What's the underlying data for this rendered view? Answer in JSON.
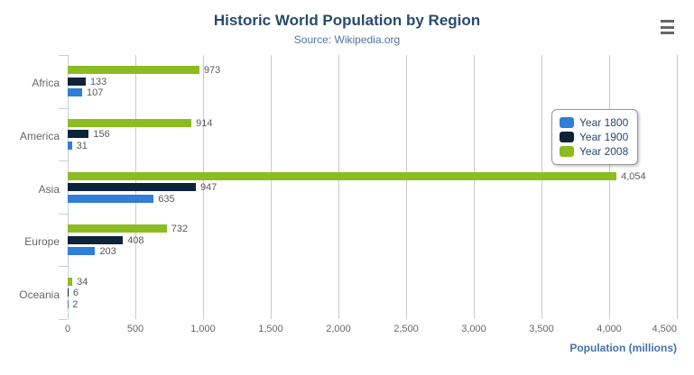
{
  "header": {
    "title": "Historic World Population by Region",
    "subtitle": "Source: Wikipedia.org"
  },
  "menu": {
    "name": "export-context-menu"
  },
  "axis_x": {
    "title": "Population (millions)",
    "min": 0,
    "max": 4500,
    "tick_interval": 500,
    "tick_labels": [
      "0",
      "500",
      "1,000",
      "1,500",
      "2,000",
      "2,500",
      "3,000",
      "3,500",
      "4,000",
      "4,500"
    ]
  },
  "legend": {
    "items": [
      {
        "label": "Year 1800",
        "color": "#2f7ed8"
      },
      {
        "label": "Year 1900",
        "color": "#0d233a"
      },
      {
        "label": "Year 2008",
        "color": "#8bbc21"
      }
    ]
  },
  "colors": {
    "title": "#274b6d",
    "subtitle": "#4d759e",
    "axis_title": "#4572a7",
    "tick_labels": "#666666",
    "data_labels": "#5a5a5a",
    "gridline": "#c9c9c9",
    "axis_line": "#c0d0e0",
    "legend_border": "#999999",
    "menu_icon": "#666666",
    "background": "#ffffff"
  },
  "chart_data": {
    "type": "bar",
    "orientation": "horizontal",
    "title": "Historic World Population by Region",
    "subtitle": "Source: Wikipedia.org",
    "categories": [
      "Africa",
      "America",
      "Asia",
      "Europe",
      "Oceania"
    ],
    "series": [
      {
        "name": "Year 1800",
        "color": "#2f7ed8",
        "values": [
          107,
          31,
          635,
          203,
          2
        ]
      },
      {
        "name": "Year 1900",
        "color": "#0d233a",
        "values": [
          133,
          156,
          947,
          408,
          6
        ]
      },
      {
        "name": "Year 2008",
        "color": "#8bbc21",
        "values": [
          973,
          914,
          4054,
          732,
          34
        ]
      }
    ],
    "display_order_top_to_bottom": [
      "Year 2008",
      "Year 1900",
      "Year 1800"
    ],
    "xlabel": "Population (millions)",
    "ylabel": "",
    "xlim": [
      0,
      4500
    ],
    "grid": true,
    "data_labels": true,
    "data_label_format": "thousands-comma",
    "legend_position": "right-upper"
  }
}
